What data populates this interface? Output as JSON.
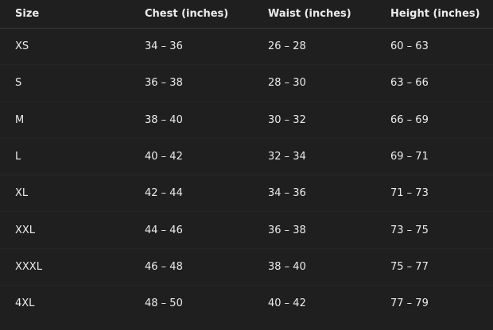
{
  "table": {
    "headers": [
      "Size",
      "Chest (inches)",
      "Waist (inches)",
      "Height (inches)"
    ],
    "rows": [
      [
        "XS",
        "34 – 36",
        "26 – 28",
        "60 – 63"
      ],
      [
        "S",
        "36 – 38",
        "28 – 30",
        "63 – 66"
      ],
      [
        "M",
        "38 – 40",
        "30 – 32",
        "66 – 69"
      ],
      [
        "L",
        "40 – 42",
        "32 – 34",
        "69 – 71"
      ],
      [
        "XL",
        "42 – 44",
        "34 – 36",
        "71 – 73"
      ],
      [
        "XXL",
        "44 – 46",
        "36 – 38",
        "73 – 75"
      ],
      [
        "XXXL",
        "46 – 48",
        "38 – 40",
        "75 – 77"
      ],
      [
        "4XL",
        "48 – 50",
        "40 – 42",
        "77 – 79"
      ]
    ]
  }
}
